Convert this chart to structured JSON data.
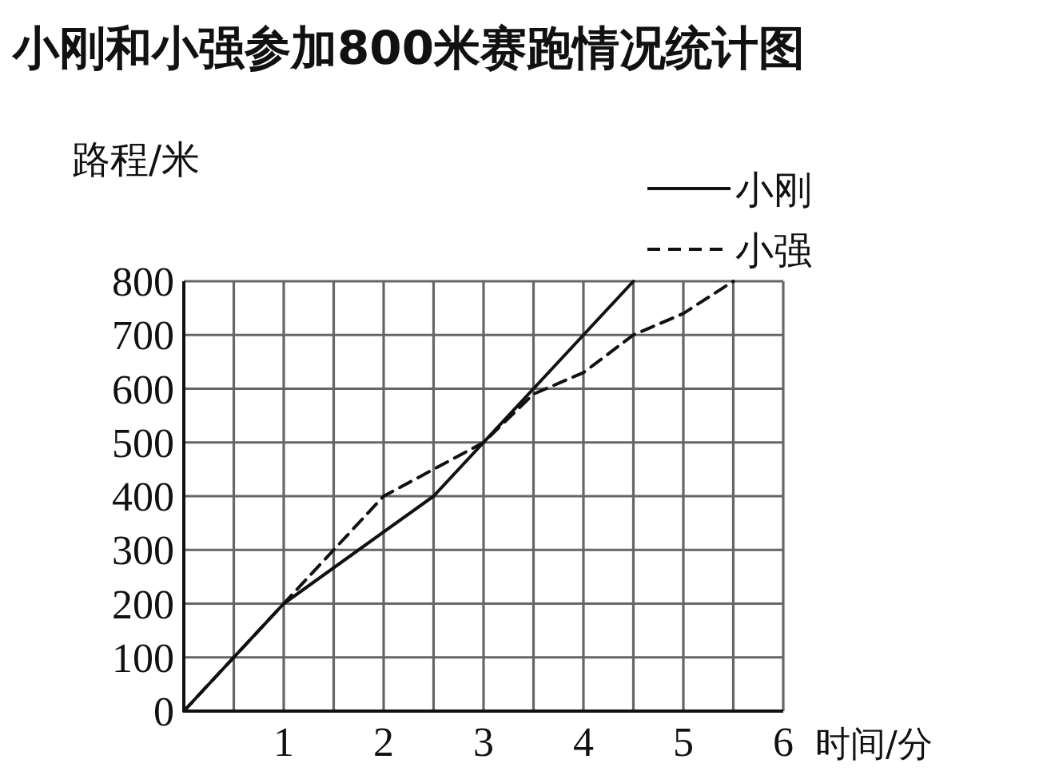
{
  "chart_data": {
    "type": "line",
    "title": "小刚和小强参加800米赛跑情况统计图",
    "xlabel": "时间/分",
    "ylabel": "路程/米",
    "xlim": [
      0,
      6
    ],
    "ylim": [
      0,
      800
    ],
    "xticks": [
      {
        "value": 0.5,
        "label": null
      },
      1,
      {
        "value": 1.5,
        "label": null
      },
      2,
      {
        "value": 2.5,
        "label": null
      },
      3,
      {
        "value": 3.5,
        "label": null
      },
      4,
      {
        "value": 4.5,
        "label": null
      },
      5,
      {
        "value": 5.5,
        "label": null
      },
      6
    ],
    "yticks": [
      0,
      100,
      200,
      300,
      400,
      500,
      600,
      700,
      800
    ],
    "grid": true,
    "legend": "top right",
    "marker": "none",
    "series": [
      {
        "name": "小刚",
        "color": "#111111",
        "line_style": "solid",
        "x": [
          0,
          1,
          2.5,
          3.5,
          4,
          4.5
        ],
        "values": [
          0,
          200,
          400,
          600,
          700,
          800
        ]
      },
      {
        "name": "小强",
        "color": "#111111",
        "line_style": "dashed",
        "x": [
          0,
          0.5,
          1,
          1.5,
          2,
          3,
          3.5,
          4,
          4.5,
          5,
          5.5
        ],
        "values": [
          0,
          100,
          200,
          300,
          400,
          500,
          590,
          630,
          700,
          740,
          800
        ]
      }
    ]
  }
}
